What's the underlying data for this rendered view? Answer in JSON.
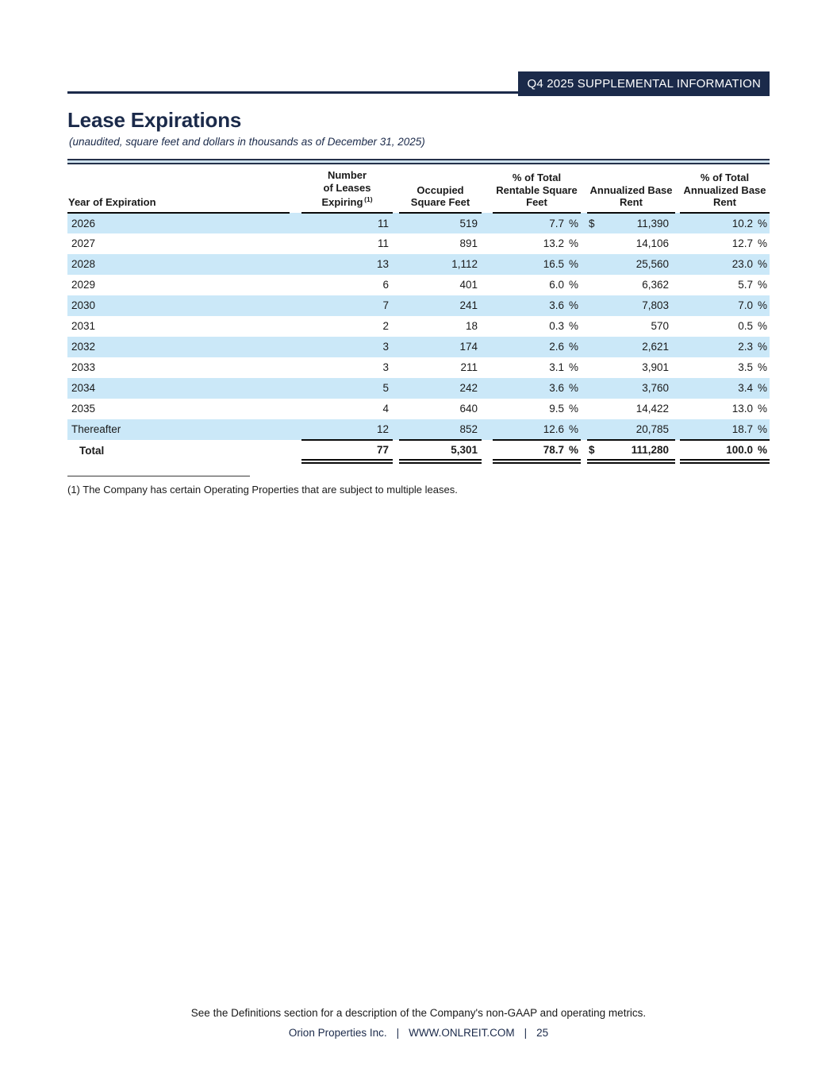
{
  "page": {
    "header_badge": "Q4 2025 SUPPLEMENTAL INFORMATION",
    "title": "Lease Expirations",
    "subtitle": "(unaudited, square feet and dollars in thousands as of December 31, 2025)",
    "footnote": "(1) The Company has certain Operating Properties that are subject to multiple leases.",
    "footer_note": "See the Definitions section for a description of the Company's non-GAAP and operating metrics.",
    "footer_company": "Orion Properties Inc.",
    "footer_separator": "|",
    "footer_url": "WWW.ONLREIT.COM",
    "footer_page_number": "25"
  },
  "colors": {
    "navy": "#1b2a4a",
    "row_shade": "#cbe8f8",
    "rule": "#0a0a0a"
  },
  "table": {
    "percent_sign": "%",
    "columns": [
      {
        "id": "year",
        "label_lines": [
          "Year of Expiration"
        ]
      },
      {
        "id": "leases",
        "label_lines": [
          "Number",
          "of Leases",
          "Expiring"
        ],
        "sup": "(1)"
      },
      {
        "id": "occupied",
        "label_lines": [
          "Occupied",
          "Square Feet"
        ]
      },
      {
        "id": "pct-rentable",
        "label_lines": [
          "% of Total",
          "Rentable Square",
          "Feet"
        ]
      },
      {
        "id": "abr",
        "label_lines": [
          "Annualized Base",
          "Rent"
        ]
      },
      {
        "id": "pct-abr",
        "label_lines": [
          "% of Total",
          "Annualized Base",
          "Rent"
        ]
      }
    ],
    "rows": [
      {
        "year": "2026",
        "leases": "11",
        "occupied": "519",
        "pct_rentable": "7.7",
        "dollar": "$",
        "abr": "11,390",
        "pct_abr": "10.2"
      },
      {
        "year": "2027",
        "leases": "11",
        "occupied": "891",
        "pct_rentable": "13.2",
        "dollar": "",
        "abr": "14,106",
        "pct_abr": "12.7"
      },
      {
        "year": "2028",
        "leases": "13",
        "occupied": "1,112",
        "pct_rentable": "16.5",
        "dollar": "",
        "abr": "25,560",
        "pct_abr": "23.0"
      },
      {
        "year": "2029",
        "leases": "6",
        "occupied": "401",
        "pct_rentable": "6.0",
        "dollar": "",
        "abr": "6,362",
        "pct_abr": "5.7"
      },
      {
        "year": "2030",
        "leases": "7",
        "occupied": "241",
        "pct_rentable": "3.6",
        "dollar": "",
        "abr": "7,803",
        "pct_abr": "7.0"
      },
      {
        "year": "2031",
        "leases": "2",
        "occupied": "18",
        "pct_rentable": "0.3",
        "dollar": "",
        "abr": "570",
        "pct_abr": "0.5"
      },
      {
        "year": "2032",
        "leases": "3",
        "occupied": "174",
        "pct_rentable": "2.6",
        "dollar": "",
        "abr": "2,621",
        "pct_abr": "2.3"
      },
      {
        "year": "2033",
        "leases": "3",
        "occupied": "211",
        "pct_rentable": "3.1",
        "dollar": "",
        "abr": "3,901",
        "pct_abr": "3.5"
      },
      {
        "year": "2034",
        "leases": "5",
        "occupied": "242",
        "pct_rentable": "3.6",
        "dollar": "",
        "abr": "3,760",
        "pct_abr": "3.4"
      },
      {
        "year": "2035",
        "leases": "4",
        "occupied": "640",
        "pct_rentable": "9.5",
        "dollar": "",
        "abr": "14,422",
        "pct_abr": "13.0"
      },
      {
        "year": "Thereafter",
        "leases": "12",
        "occupied": "852",
        "pct_rentable": "12.6",
        "dollar": "",
        "abr": "20,785",
        "pct_abr": "18.7"
      }
    ],
    "total": {
      "label": "Total",
      "leases": "77",
      "occupied": "5,301",
      "pct_rentable": "78.7",
      "dollar": "$",
      "abr": "111,280",
      "pct_abr": "100.0"
    }
  }
}
